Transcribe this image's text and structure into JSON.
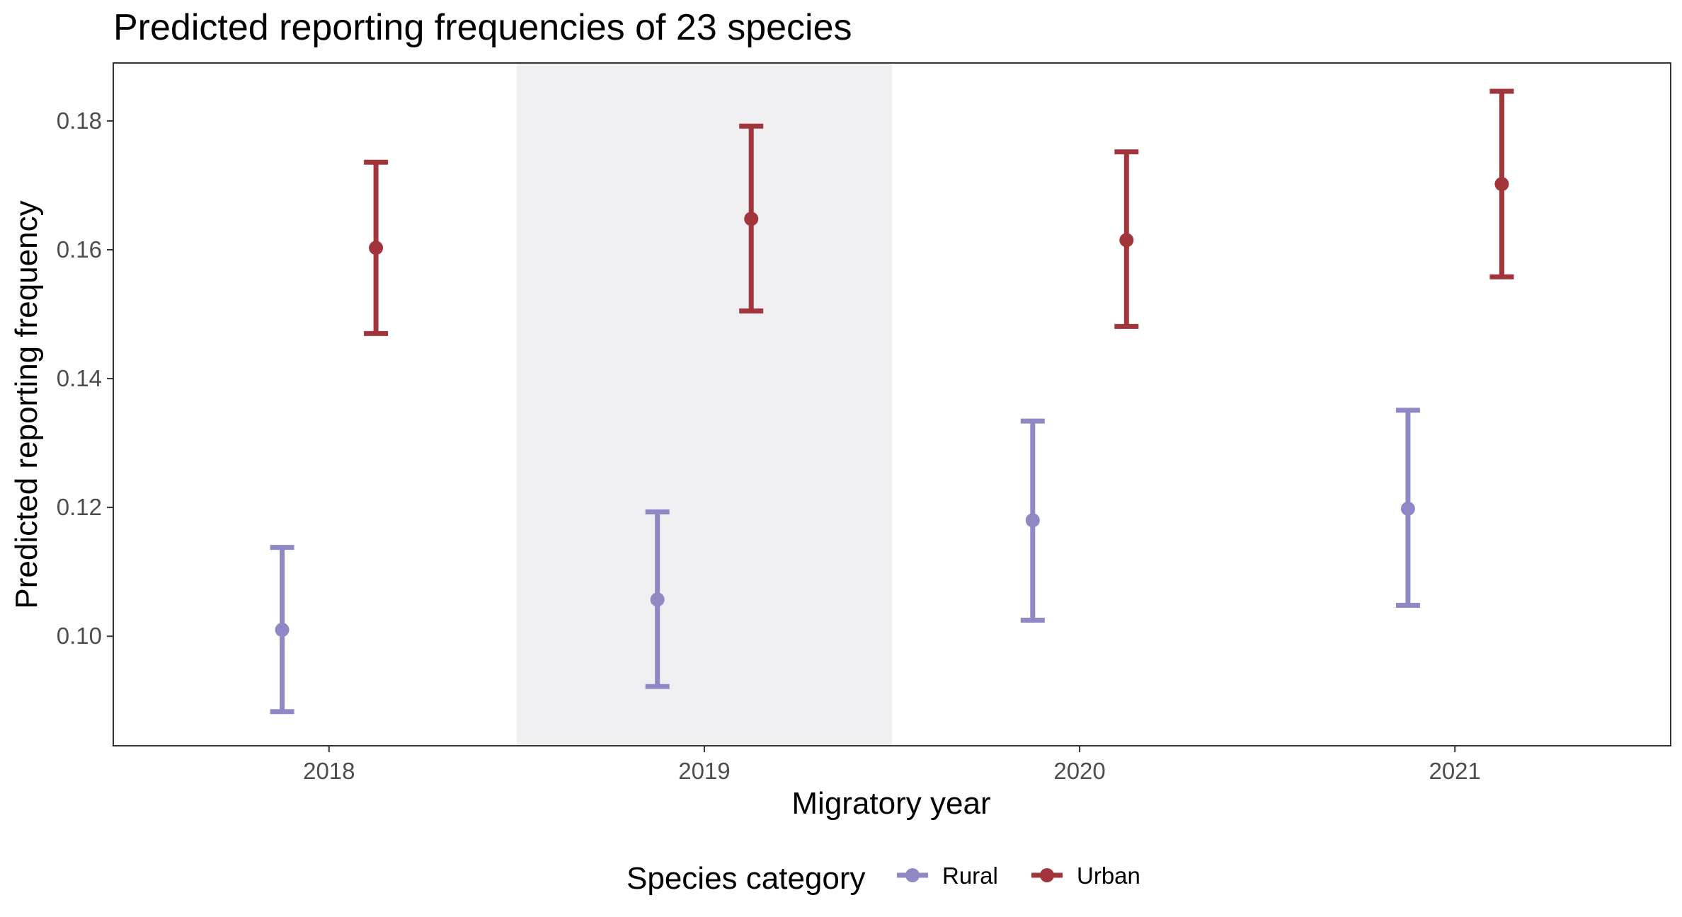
{
  "chart_data": {
    "type": "errorbar",
    "title": "Predicted reporting frequencies of 23 species",
    "xlabel": "Migratory year",
    "ylabel": "Predicted reporting frequency",
    "categories": [
      "2018",
      "2019",
      "2020",
      "2021"
    ],
    "highlighted_category": "2019",
    "ylim": [
      0.083,
      0.189
    ],
    "yticks": [
      "0.10",
      "0.12",
      "0.14",
      "0.16",
      "0.18"
    ],
    "ytick_values": [
      0.1,
      0.12,
      0.14,
      0.16,
      0.18
    ],
    "grid": false,
    "legend": {
      "title": "Species category",
      "position": "bottom"
    },
    "series": [
      {
        "name": "Rural",
        "color": "#8e88c4",
        "values": [
          0.101,
          0.1057,
          0.118,
          0.1198
        ],
        "lower": [
          0.0883,
          0.0922,
          0.1025,
          0.1048
        ],
        "upper": [
          0.1138,
          0.1193,
          0.1334,
          0.1351
        ]
      },
      {
        "name": "Urban",
        "color": "#a1353b",
        "values": [
          0.1603,
          0.1648,
          0.1615,
          0.1702
        ],
        "lower": [
          0.147,
          0.1505,
          0.1481,
          0.1558
        ],
        "upper": [
          0.1736,
          0.1792,
          0.1752,
          0.1846
        ]
      }
    ]
  }
}
